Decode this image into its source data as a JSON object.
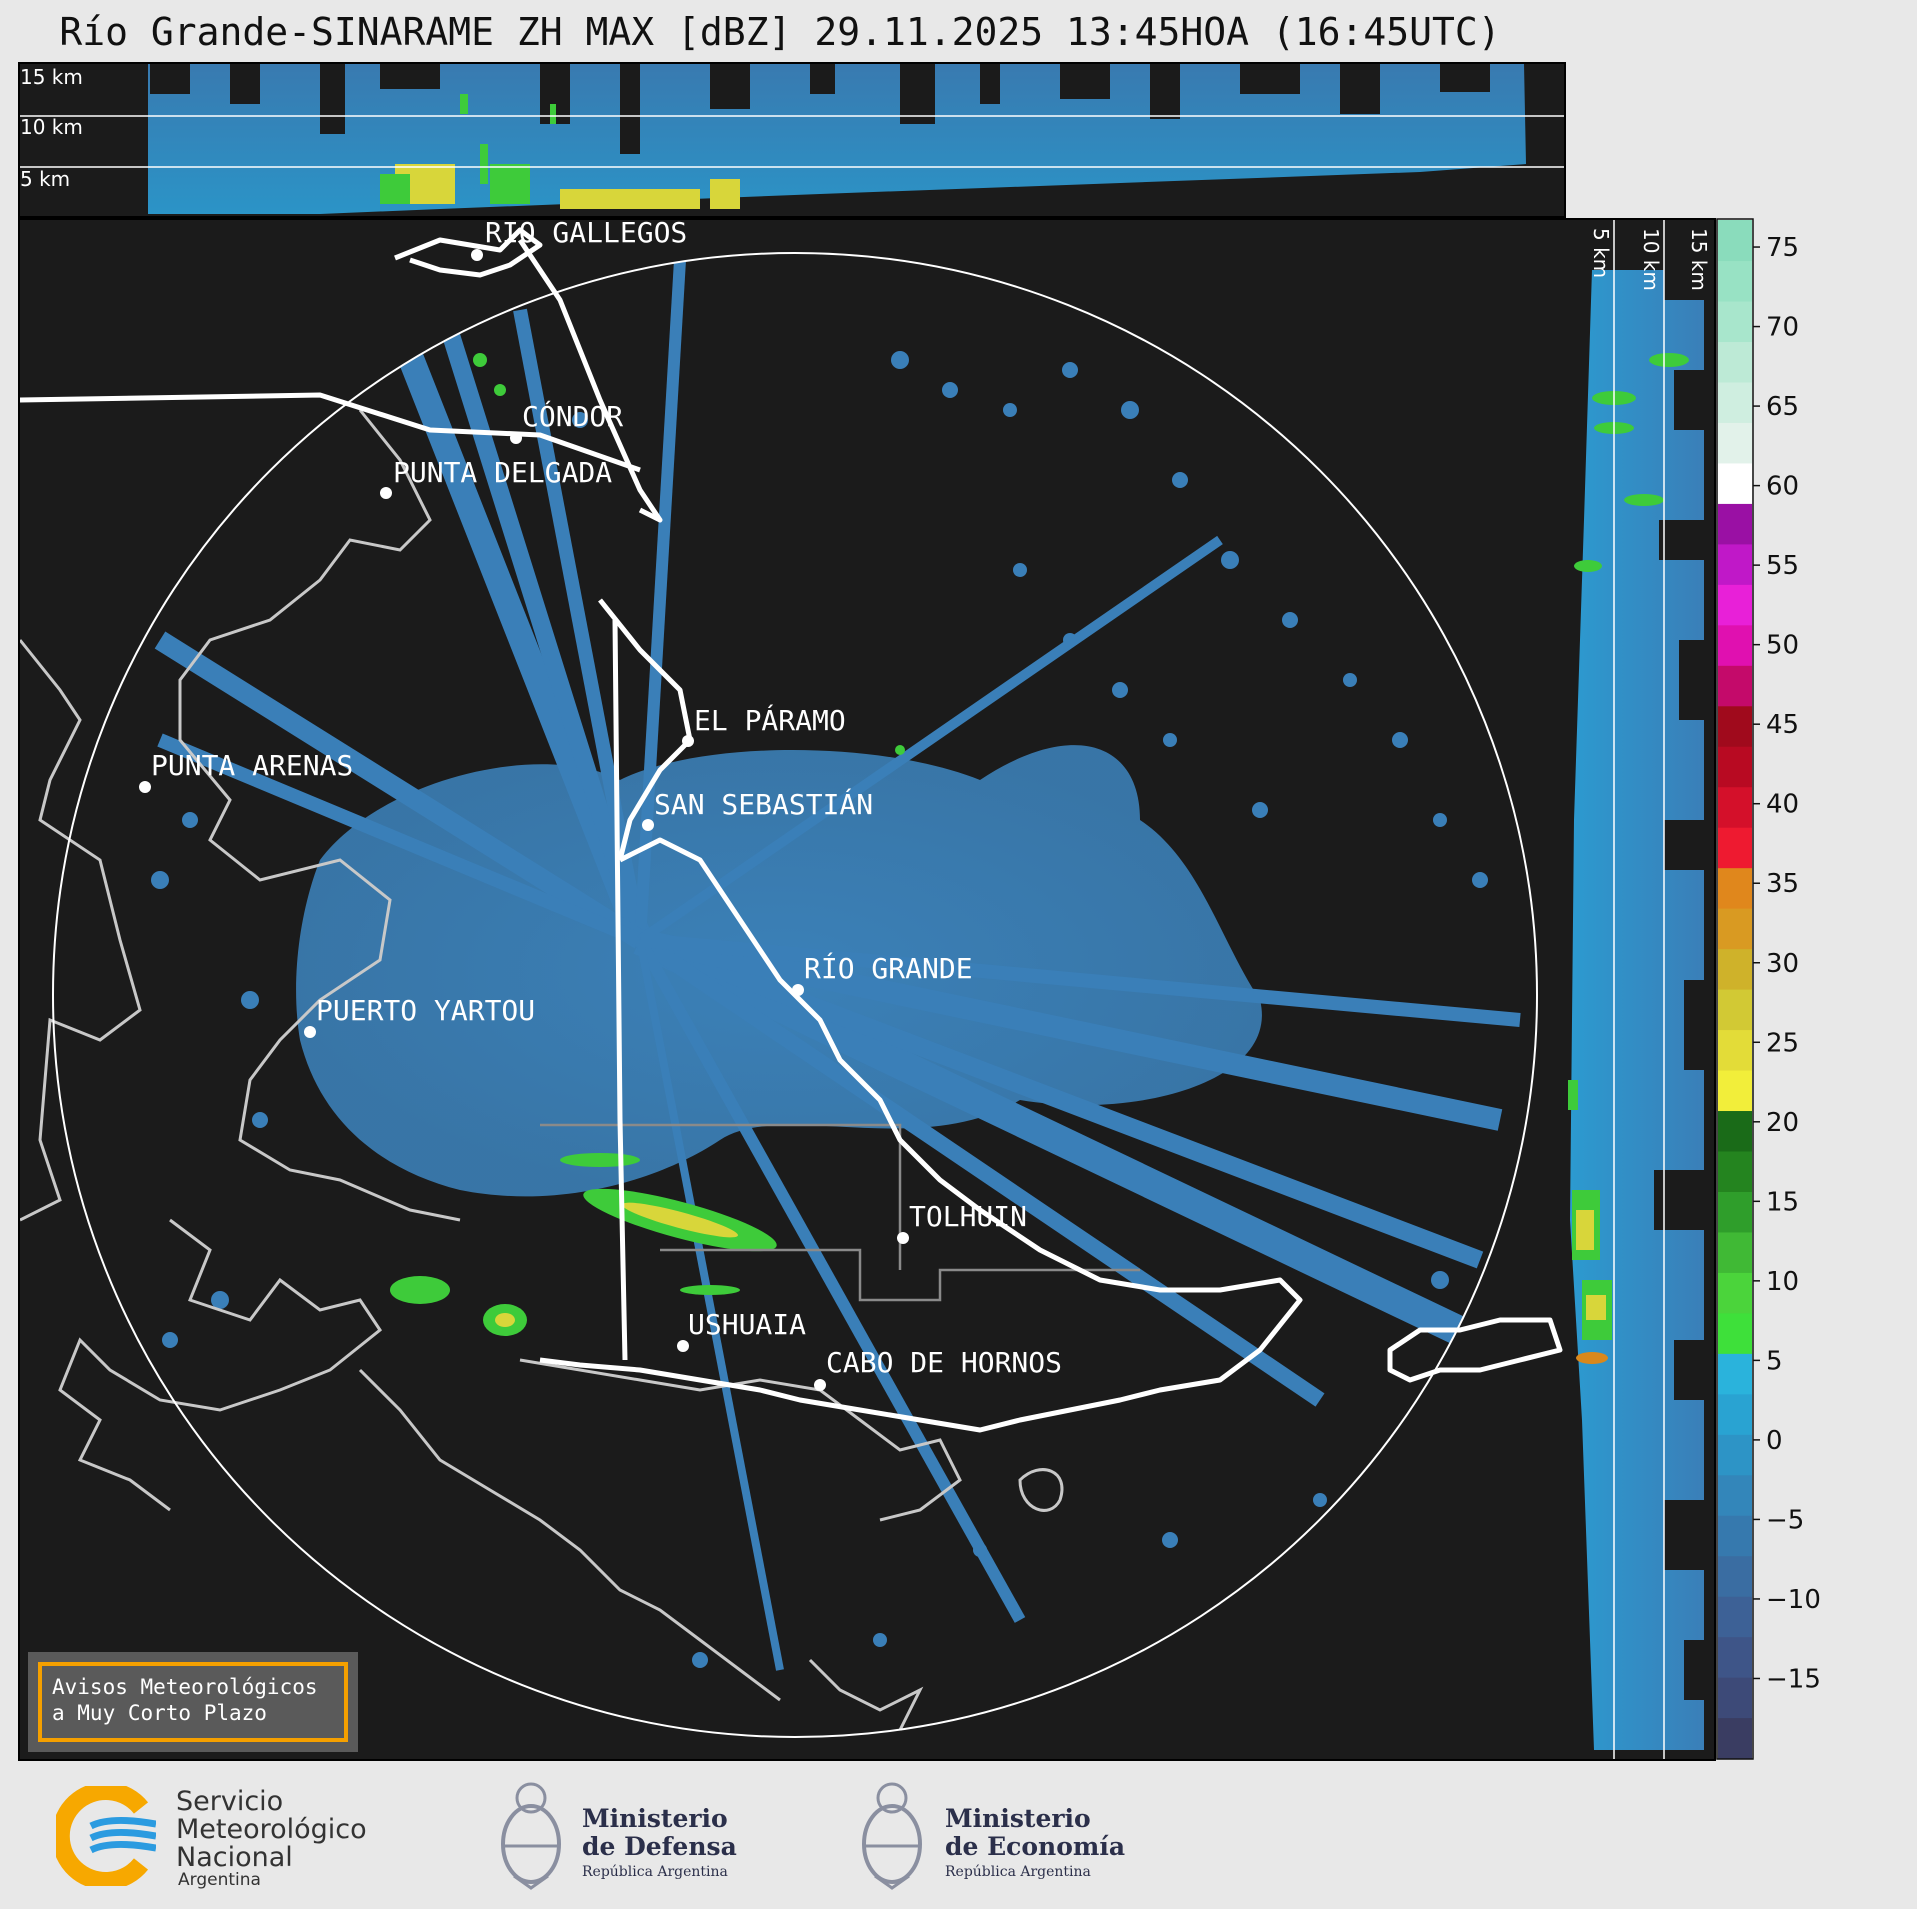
{
  "title": "Río Grande-SINARAME ZH MAX [dBZ] 29.11.2025 13:45HOA (16:45UTC)",
  "top_profile": {
    "height_labels": [
      "15 km",
      "10 km",
      "5 km"
    ]
  },
  "side_profile": {
    "height_labels": [
      "5 km",
      "10 km",
      "15 km"
    ]
  },
  "map": {
    "cities": [
      {
        "name": "RÍO GALLEGOS"
      },
      {
        "name": "CÓNDOR"
      },
      {
        "name": "PUNTA DELGADA"
      },
      {
        "name": "EL PÁRAMO"
      },
      {
        "name": "PUNTA ARENAS"
      },
      {
        "name": "SAN SEBASTIÁN"
      },
      {
        "name": "RÍO GRANDE"
      },
      {
        "name": "PUERTO YARTOU"
      },
      {
        "name": "TOLHUIN"
      },
      {
        "name": "USHUAIA"
      },
      {
        "name": "CABO DE HORNOS"
      }
    ]
  },
  "colorbar": {
    "unit": "dBZ",
    "ticks": [
      "75",
      "70",
      "65",
      "60",
      "55",
      "50",
      "45",
      "40",
      "35",
      "30",
      "25",
      "20",
      "15",
      "10",
      "5",
      "0",
      "−5",
      "−10",
      "−15"
    ],
    "colors": [
      "#3a3d62",
      "#3d4a78",
      "#3e5588",
      "#3d6196",
      "#3a6da2",
      "#3679ae",
      "#3386ba",
      "#2d94c6",
      "#29a3d2",
      "#2ab3dc",
      "#3ee03a",
      "#4bd43b",
      "#40b935",
      "#2f9e2b",
      "#24841f",
      "#1a6b18",
      "#f2ee3a",
      "#e3dc38",
      "#d2c934",
      "#cfb22a",
      "#d99a22",
      "#e0871c",
      "#ee1a30",
      "#d4102a",
      "#b80a22",
      "#a00a1c",
      "#c40a6a",
      "#e010b0",
      "#e820d8",
      "#c018c8",
      "#9a10a4",
      "#ffffff",
      "#e2f2ea",
      "#cfeee0",
      "#bdead6",
      "#a8e6cc",
      "#98e2c4",
      "#8adcbc"
    ]
  },
  "notice": {
    "line1": "Avisos Meteorológicos",
    "line2": "a Muy Corto Plazo"
  },
  "logos": {
    "smn": {
      "line1": "Servicio",
      "line2": "Meteorológico",
      "line3": "Nacional",
      "line4": "Argentina",
      "ring_color": "#f7a800",
      "wave_color": "#2b9be0"
    },
    "defensa": {
      "line1": "Ministerio",
      "line2": "de Defensa",
      "line3": "República Argentina"
    },
    "economia": {
      "line1": "Ministerio",
      "line2": "de Economía",
      "line3": "República Argentina"
    }
  },
  "colors": {
    "background": "#1b1b1b",
    "echo": "#3a7fb8",
    "echo_light": "#2aa0d4",
    "green": "#3ecb3a",
    "yellow": "#e6e03a"
  }
}
